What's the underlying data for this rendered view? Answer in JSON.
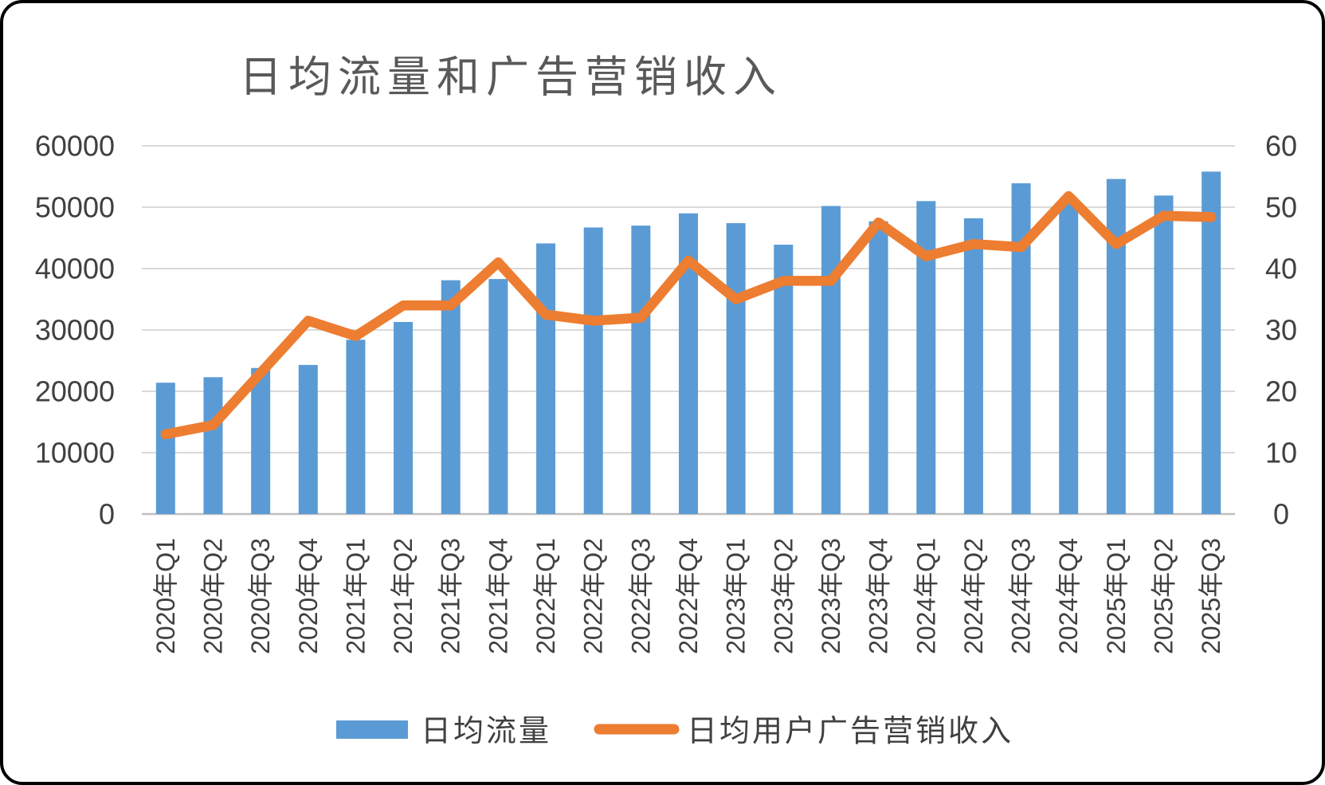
{
  "title": "日均流量和广告营销收入",
  "legend": {
    "bar_label": "日均流量",
    "line_label": "日均用户广告营销收入"
  },
  "colors": {
    "bar": "#5B9BD5",
    "line": "#ED7D31",
    "grid": "#D9D9D9",
    "axis_line": "#BFBFBF",
    "label": "#404040",
    "title": "#595959",
    "border": "#000000"
  },
  "chart_data": {
    "type": "bar+line combo",
    "grid": true,
    "legend_position": "bottom",
    "categories": [
      "2020年Q1",
      "2020年Q2",
      "2020年Q3",
      "2020年Q4",
      "2021年Q1",
      "2021年Q2",
      "2021年Q3",
      "2021年Q4",
      "2022年Q1",
      "2022年Q2",
      "2022年Q3",
      "2022年Q4",
      "2023年Q1",
      "2023年Q2",
      "2023年Q3",
      "2023年Q4",
      "2024年Q1",
      "2024年Q2",
      "2024年Q3",
      "2024年Q4",
      "2025年Q1",
      "2025年Q2",
      "2025年Q3"
    ],
    "series": [
      {
        "name": "日均流量",
        "type": "bar",
        "axis": "left",
        "values": [
          21400,
          22300,
          23800,
          24300,
          28400,
          31300,
          38100,
          38300,
          44100,
          46700,
          47000,
          49000,
          47400,
          43900,
          50200,
          47700,
          51000,
          48200,
          53900,
          50600,
          54600,
          51900,
          55800
        ]
      },
      {
        "name": "日均用户广告营销收入",
        "type": "line",
        "axis": "right",
        "values": [
          13,
          14.5,
          23,
          31.5,
          29,
          34,
          34,
          41,
          32.5,
          31.5,
          32,
          41.3,
          35,
          38,
          38,
          47.5,
          42,
          44,
          43.5,
          51.8,
          44,
          48.6,
          48.4
        ]
      }
    ],
    "left_axis": {
      "min": 0,
      "max": 60000,
      "step": 10000,
      "tick_labels": [
        "0",
        "10000",
        "20000",
        "30000",
        "40000",
        "50000",
        "60000"
      ]
    },
    "right_axis": {
      "min": 0,
      "max": 60,
      "step": 10,
      "tick_labels": [
        "0",
        "10",
        "20",
        "30",
        "40",
        "50",
        "60"
      ]
    }
  }
}
